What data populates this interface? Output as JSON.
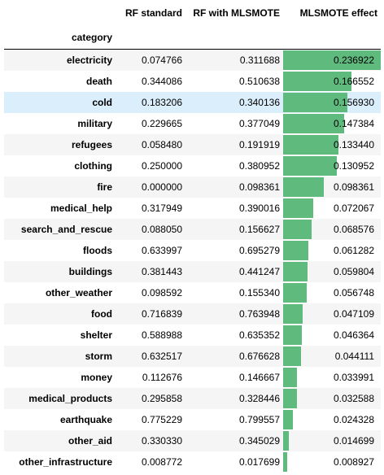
{
  "table": {
    "columns": [
      "RF standard",
      "RF with MLSMOTE",
      "MLSMOTE effect"
    ],
    "index_name": "category",
    "bar_color": "#5fba7d",
    "highlight_color": "#dbeefb",
    "highlight_row": "cold",
    "rows": [
      {
        "category": "electricity",
        "rf_standard": "0.074766",
        "rf_mlsmote": "0.311688",
        "effect": "0.236922",
        "effect_value": 0.236922
      },
      {
        "category": "death",
        "rf_standard": "0.344086",
        "rf_mlsmote": "0.510638",
        "effect": "0.166552",
        "effect_value": 0.166552
      },
      {
        "category": "cold",
        "rf_standard": "0.183206",
        "rf_mlsmote": "0.340136",
        "effect": "0.156930",
        "effect_value": 0.15693
      },
      {
        "category": "military",
        "rf_standard": "0.229665",
        "rf_mlsmote": "0.377049",
        "effect": "0.147384",
        "effect_value": 0.147384
      },
      {
        "category": "refugees",
        "rf_standard": "0.058480",
        "rf_mlsmote": "0.191919",
        "effect": "0.133440",
        "effect_value": 0.13344
      },
      {
        "category": "clothing",
        "rf_standard": "0.250000",
        "rf_mlsmote": "0.380952",
        "effect": "0.130952",
        "effect_value": 0.130952
      },
      {
        "category": "fire",
        "rf_standard": "0.000000",
        "rf_mlsmote": "0.098361",
        "effect": "0.098361",
        "effect_value": 0.098361
      },
      {
        "category": "medical_help",
        "rf_standard": "0.317949",
        "rf_mlsmote": "0.390016",
        "effect": "0.072067",
        "effect_value": 0.072067
      },
      {
        "category": "search_and_rescue",
        "rf_standard": "0.088050",
        "rf_mlsmote": "0.156627",
        "effect": "0.068576",
        "effect_value": 0.068576
      },
      {
        "category": "floods",
        "rf_standard": "0.633997",
        "rf_mlsmote": "0.695279",
        "effect": "0.061282",
        "effect_value": 0.061282
      },
      {
        "category": "buildings",
        "rf_standard": "0.381443",
        "rf_mlsmote": "0.441247",
        "effect": "0.059804",
        "effect_value": 0.059804
      },
      {
        "category": "other_weather",
        "rf_standard": "0.098592",
        "rf_mlsmote": "0.155340",
        "effect": "0.056748",
        "effect_value": 0.056748
      },
      {
        "category": "food",
        "rf_standard": "0.716839",
        "rf_mlsmote": "0.763948",
        "effect": "0.047109",
        "effect_value": 0.047109
      },
      {
        "category": "shelter",
        "rf_standard": "0.588988",
        "rf_mlsmote": "0.635352",
        "effect": "0.046364",
        "effect_value": 0.046364
      },
      {
        "category": "storm",
        "rf_standard": "0.632517",
        "rf_mlsmote": "0.676628",
        "effect": "0.044111",
        "effect_value": 0.044111
      },
      {
        "category": "money",
        "rf_standard": "0.112676",
        "rf_mlsmote": "0.146667",
        "effect": "0.033991",
        "effect_value": 0.033991
      },
      {
        "category": "medical_products",
        "rf_standard": "0.295858",
        "rf_mlsmote": "0.328446",
        "effect": "0.032588",
        "effect_value": 0.032588
      },
      {
        "category": "earthquake",
        "rf_standard": "0.775229",
        "rf_mlsmote": "0.799557",
        "effect": "0.024328",
        "effect_value": 0.024328
      },
      {
        "category": "other_aid",
        "rf_standard": "0.330330",
        "rf_mlsmote": "0.345029",
        "effect": "0.014699",
        "effect_value": 0.014699
      },
      {
        "category": "other_infrastructure",
        "rf_standard": "0.008772",
        "rf_mlsmote": "0.017699",
        "effect": "0.008927",
        "effect_value": 0.008927
      }
    ]
  }
}
